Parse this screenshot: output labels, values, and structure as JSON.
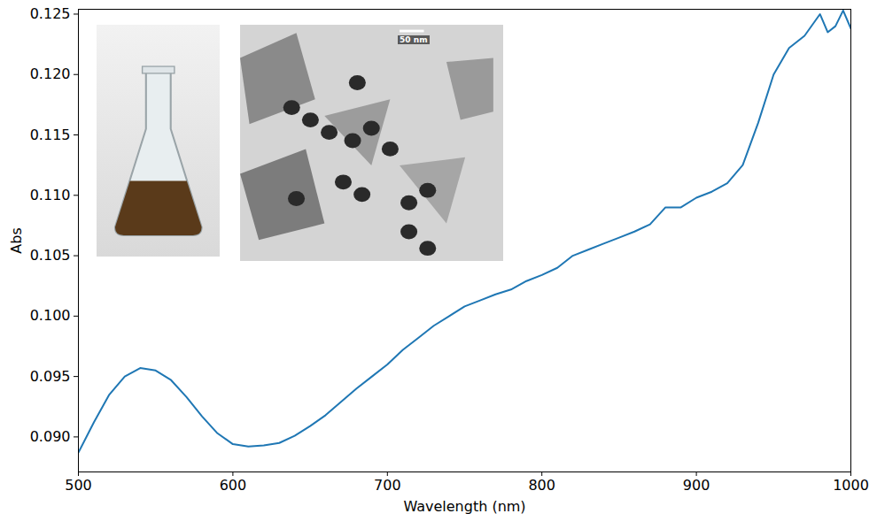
{
  "chart_data": {
    "type": "line",
    "x_label": "Wavelength (nm)",
    "y_label": "Abs",
    "annotations": [
      "50 nm"
    ],
    "x": [
      500,
      510,
      520,
      530,
      540,
      550,
      560,
      570,
      580,
      590,
      600,
      610,
      620,
      630,
      640,
      650,
      660,
      670,
      680,
      690,
      700,
      710,
      720,
      730,
      740,
      750,
      760,
      770,
      780,
      790,
      800,
      810,
      820,
      830,
      840,
      850,
      860,
      870,
      880,
      890,
      900,
      910,
      920,
      930,
      940,
      950,
      960,
      970,
      980,
      985,
      990,
      995,
      1000
    ],
    "values": [
      0.0887,
      0.0912,
      0.0935,
      0.095,
      0.0957,
      0.0955,
      0.0947,
      0.0933,
      0.0917,
      0.0903,
      0.0894,
      0.0892,
      0.0893,
      0.0895,
      0.0901,
      0.0909,
      0.0918,
      0.0929,
      0.094,
      0.095,
      0.096,
      0.0972,
      0.0982,
      0.0992,
      0.1,
      0.1008,
      0.1013,
      0.1018,
      0.1022,
      0.1029,
      0.1034,
      0.104,
      0.105,
      0.1055,
      0.106,
      0.1065,
      0.107,
      0.1076,
      0.109,
      0.109,
      0.1098,
      0.1103,
      0.111,
      0.1125,
      0.116,
      0.12,
      0.1222,
      0.1232,
      0.125,
      0.1235,
      0.124,
      0.1253,
      0.1238
    ],
    "color": "#1f77b4",
    "xlim": [
      500,
      1000
    ],
    "xticks": [
      500,
      600,
      700,
      800,
      900,
      1000
    ],
    "ylim": [
      0.0871,
      0.1254
    ],
    "yticks": [
      {
        "value": 0.09,
        "label": "0.090"
      },
      0.095,
      {
        "value": 0.1,
        "label": "0.100"
      },
      0.105,
      {
        "value": 0.11,
        "label": "0.110"
      },
      0.115,
      {
        "value": 0.12,
        "label": "0.120"
      },
      0.125
    ],
    "grid": false
  }
}
